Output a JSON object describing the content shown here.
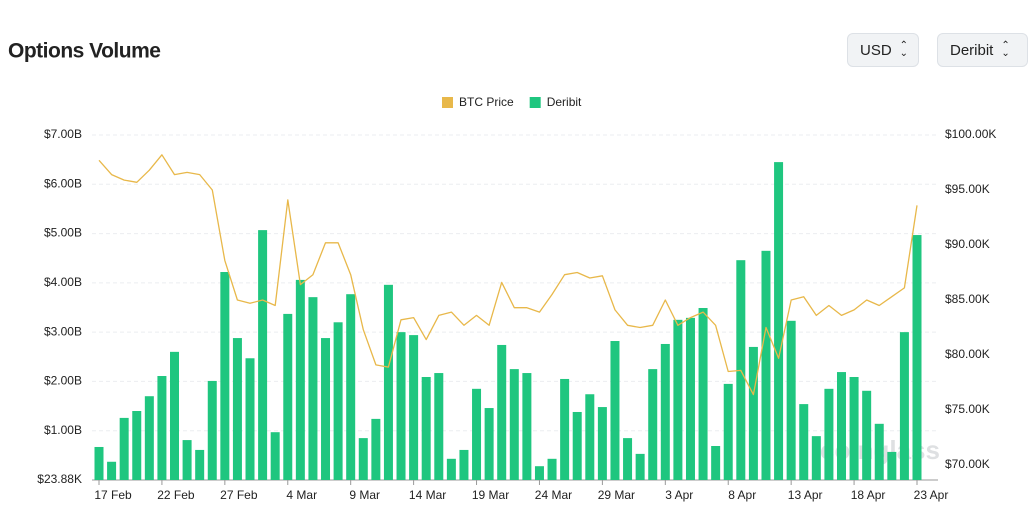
{
  "controls": [
    "USD",
    "Deribit"
  ],
  "chart_data": {
    "type": "bar",
    "title": "Options Volume",
    "watermark": "coinglass",
    "categories": [
      "17 Feb",
      null,
      null,
      null,
      null,
      "22 Feb",
      null,
      null,
      null,
      null,
      "27 Feb",
      null,
      null,
      null,
      null,
      "4 Mar",
      null,
      null,
      null,
      null,
      "9 Mar",
      null,
      null,
      null,
      null,
      "14 Mar",
      null,
      null,
      null,
      null,
      "19 Mar",
      null,
      null,
      null,
      null,
      "24 Mar",
      null,
      null,
      null,
      null,
      "29 Mar",
      null,
      null,
      null,
      null,
      "3 Apr",
      null,
      null,
      null,
      null,
      "8 Apr",
      null,
      null,
      null,
      null,
      "13 Apr",
      null,
      null,
      null,
      null,
      "18 Apr",
      null,
      null,
      null,
      null,
      "23 Apr"
    ],
    "series": [
      {
        "name": "BTC Price",
        "color": "#e8b84a",
        "type": "line",
        "axis": "y2",
        "values": [
          97.7,
          96.4,
          95.9,
          95.7,
          96.8,
          98.2,
          96.4,
          96.6,
          96.4,
          95.0,
          88.6,
          85.0,
          84.7,
          85.0,
          84.5,
          94.1,
          86.4,
          87.3,
          90.2,
          90.2,
          87.3,
          82.3,
          79.1,
          78.9,
          83.2,
          83.4,
          81.4,
          83.6,
          83.9,
          82.7,
          83.6,
          82.7,
          86.6,
          84.3,
          84.3,
          83.9,
          85.5,
          87.3,
          87.5,
          87.0,
          87.2,
          84.1,
          82.7,
          82.5,
          82.7,
          85.0,
          82.7,
          83.4,
          83.9,
          82.7,
          78.5,
          78.6,
          76.4,
          82.5,
          79.7,
          85.0,
          85.3,
          83.6,
          84.5,
          83.6,
          84.1,
          85.0,
          84.5,
          85.3,
          86.1,
          93.6
        ]
      },
      {
        "name": "Deribit",
        "color": "#1fc67f",
        "type": "bar",
        "values": [
          0.67,
          0.37,
          1.26,
          1.4,
          1.7,
          2.11,
          2.6,
          0.81,
          0.61,
          2.01,
          4.22,
          2.88,
          2.47,
          5.07,
          0.97,
          3.37,
          4.06,
          3.71,
          2.88,
          3.2,
          3.77,
          0.85,
          1.24,
          3.96,
          3.0,
          2.94,
          2.09,
          2.17,
          0.43,
          0.61,
          1.85,
          1.46,
          2.74,
          2.25,
          2.17,
          0.28,
          0.43,
          2.05,
          1.38,
          1.74,
          1.48,
          2.82,
          0.85,
          0.53,
          2.25,
          2.76,
          3.25,
          3.29,
          3.49,
          0.69,
          1.95,
          4.46,
          2.7,
          4.65,
          6.45,
          3.23,
          1.54,
          0.89,
          1.85,
          2.19,
          2.09,
          1.81,
          1.14,
          0.57,
          3.0,
          4.97
        ]
      }
    ],
    "ylim": [
      2.388e-05,
      7
    ],
    "yticks": [
      {
        "value": 2.388e-05,
        "label": "$23.88K"
      },
      {
        "value": 1,
        "label": "$1.00B"
      },
      {
        "value": 2,
        "label": "$2.00B"
      },
      {
        "value": 3,
        "label": "$3.00B"
      },
      {
        "value": 4,
        "label": "$4.00B"
      },
      {
        "value": 5,
        "label": "$5.00B"
      },
      {
        "value": 6,
        "label": "$6.00B"
      },
      {
        "value": 7,
        "label": "$7.00B"
      }
    ],
    "y2lim": [
      68.64,
      100
    ],
    "y2ticks": [
      {
        "value": 70,
        "label": "$70.00K"
      },
      {
        "value": 75,
        "label": "$75.00K"
      },
      {
        "value": 80,
        "label": "$80.00K"
      },
      {
        "value": 85,
        "label": "$85.00K"
      },
      {
        "value": 90,
        "label": "$90.00K"
      },
      {
        "value": 95,
        "label": "$95.00K"
      },
      {
        "value": 100,
        "label": "$100.00K"
      }
    ],
    "grid": true,
    "legend": "top"
  }
}
